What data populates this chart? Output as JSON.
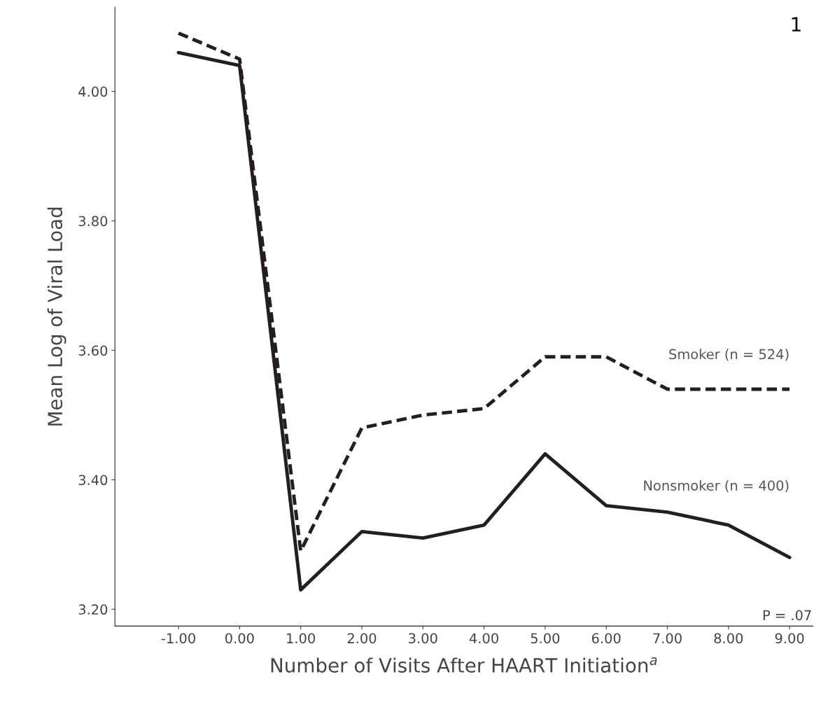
{
  "chart_data": {
    "type": "line",
    "xlabel": "Number of Visits After HAART Initiation$^{a}$",
    "ylabel": "Mean Log of Viral Load",
    "x": [
      -1,
      0,
      1,
      2,
      3,
      4,
      5,
      6,
      7,
      8,
      9
    ],
    "series": [
      {
        "name": "Smoker (n = 524)",
        "color": "#231f20",
        "line_style": "dashed",
        "values": [
          4.09,
          4.05,
          3.29,
          3.48,
          3.5,
          3.51,
          3.59,
          3.59,
          3.54,
          3.54,
          3.54
        ]
      },
      {
        "name": "Nonsmoker (n = 400)",
        "color": "#231f20",
        "line_style": "solid",
        "values": [
          4.06,
          4.04,
          3.23,
          3.32,
          3.31,
          3.33,
          3.44,
          3.36,
          3.35,
          3.33,
          3.28
        ]
      }
    ],
    "xlim": [
      -2.04,
      9.38
    ],
    "ylim": [
      3.174,
      4.13
    ],
    "xticks": [
      {
        "value": -1,
        "label": "-1.00"
      },
      {
        "value": 0,
        "label": "0.00"
      },
      {
        "value": 1,
        "label": "1.00"
      },
      {
        "value": 2,
        "label": "2.00"
      },
      {
        "value": 3,
        "label": "3.00"
      },
      {
        "value": 4,
        "label": "4.00"
      },
      {
        "value": 5,
        "label": "5.00"
      },
      {
        "value": 6,
        "label": "6.00"
      },
      {
        "value": 7,
        "label": "7.00"
      },
      {
        "value": 8,
        "label": "8.00"
      },
      {
        "value": 9,
        "label": "9.00"
      }
    ],
    "yticks": [
      {
        "value": 3.2,
        "label": "3.20"
      },
      {
        "value": 3.4,
        "label": "3.40"
      },
      {
        "value": 3.6,
        "label": "3.60"
      },
      {
        "value": 3.8,
        "label": "3.80"
      },
      {
        "value": 4.0,
        "label": "4.00"
      }
    ],
    "annotations": [
      "P = .07",
      "1"
    ],
    "grid": false,
    "legend": false,
    "marker": "none"
  }
}
